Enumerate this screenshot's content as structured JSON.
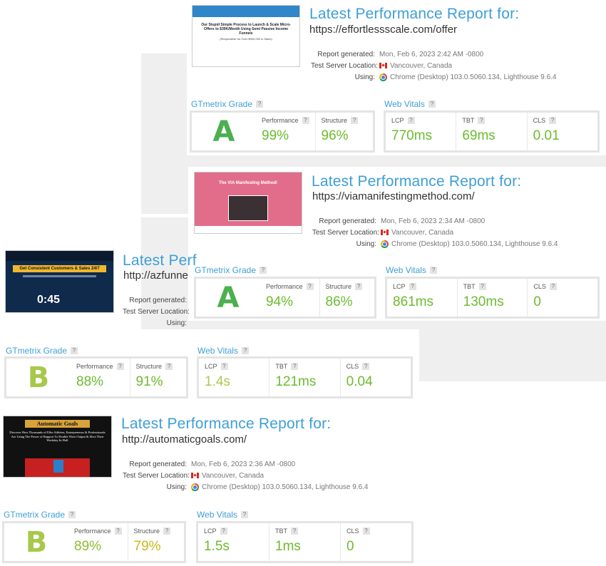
{
  "labels": {
    "title": "Latest Performance Report for:",
    "generated": "Report generated:",
    "location": "Test Server Location:",
    "using": "Using:",
    "gtmetrix": "GTmetrix Grade",
    "vitals": "Web Vitals",
    "performance": "Performance",
    "structure": "Structure",
    "lcp": "LCP",
    "tbt": "TBT",
    "cls": "CLS",
    "help": "?"
  },
  "reports": [
    {
      "title_visible": "Latest Performance Report for:",
      "url": "https://effortlessscale.com/offer",
      "generated": "Mon, Feb 6, 2023 2:42 AM -0800",
      "location": "Vancouver, Canada",
      "using": "Chrome (Desktop) 103.0.5060.134, Lighthouse 9.6.4",
      "grade": "A",
      "performance": "99%",
      "structure": "96%",
      "lcp": "770ms",
      "tbt": "69ms",
      "cls": "0.01",
      "thumb": {
        "headline": "Our Stupid Simple Process to Launch & Scale Micro-Offers to $30K/Month Using Semi Passive Income Funnels",
        "sub": "(Responsible for Over $900,000 in Sales)"
      }
    },
    {
      "title_visible": "Latest Performance Report for:",
      "url": "https://viamanifestingmethod.com/",
      "generated": "Mon, Feb 6, 2023 2:34 AM -0800",
      "location": "Vancouver, Canada",
      "using": "Chrome (Desktop) 103.0.5060.134, Lighthouse 9.6.4",
      "grade": "A",
      "performance": "94%",
      "structure": "86%",
      "lcp": "861ms",
      "tbt": "130ms",
      "cls": "0",
      "thumb": {
        "headline": "The VIA Manifesting Method!"
      }
    },
    {
      "title_visible": "Latest Perf",
      "url": "http://azfunne",
      "generated": "",
      "location": "",
      "using": "",
      "grade": "B",
      "performance": "88%",
      "structure": "91%",
      "lcp": "1.4s",
      "tbt": "121ms",
      "cls": "0.04",
      "thumb": {
        "headline": "Get Consistent Customers & Sales 24/7",
        "timer": "0:45"
      }
    },
    {
      "title_visible": "Latest Performance Report for:",
      "url": "http://automaticgoals.com/",
      "generated": "Mon, Feb 6, 2023 2:36 AM -0800",
      "location": "Vancouver, Canada",
      "using": "Chrome (Desktop) 103.0.5060.134, Lighthouse 9.6.4",
      "grade": "B",
      "performance": "89%",
      "structure": "79%",
      "lcp": "1.5s",
      "tbt": "1ms",
      "cls": "0",
      "thumb": {
        "headline": "Automatic Goals",
        "sub": "Discover How Thousands of Elite Athletes, Entrepreneurs & Professionals Are Using The Power of Rapport To Double Their Output & Slice Their Workday In Half"
      }
    }
  ],
  "colors": {
    "accent": "#3e9fd6",
    "good": "#6cbb2f",
    "ok": "#c6c52d",
    "gradeA": "#4caf50",
    "gradeB": "#a6c94a"
  }
}
